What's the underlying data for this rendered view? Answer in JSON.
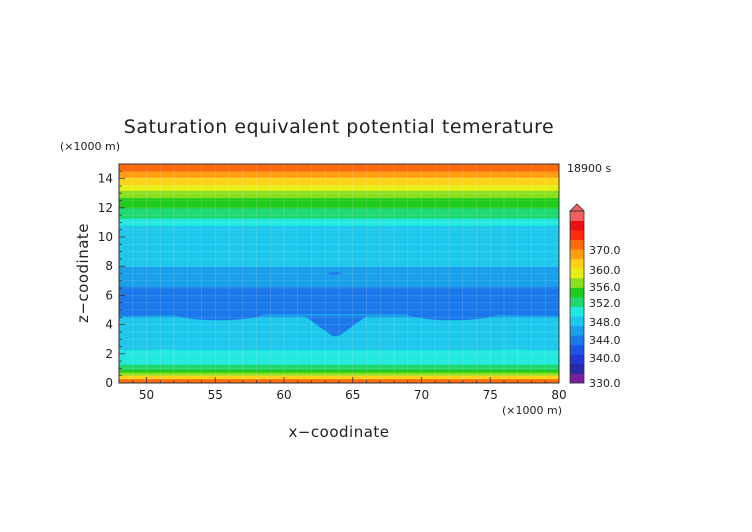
{
  "chart_data": {
    "type": "heatmap",
    "title": "Saturation equivalent potential temerature",
    "xlabel": "x−coodinate",
    "ylabel": "z−coodinate",
    "x_unit": "(×1000 m)",
    "y_unit": "(×1000 m)",
    "time_label": "18900 s",
    "xlim": [
      48,
      80
    ],
    "ylim": [
      0,
      15
    ],
    "x_ticks": [
      50,
      55,
      60,
      65,
      70,
      75,
      80
    ],
    "y_ticks": [
      0,
      2,
      4,
      6,
      8,
      10,
      12,
      14
    ],
    "grid": true,
    "colorbar": {
      "range": [
        330.0,
        370.0
      ],
      "labels": [
        "330.0",
        "340.0",
        "344.0",
        "348.0",
        "352.0",
        "356.0",
        "360.0",
        "370.0"
      ],
      "colors": [
        "#7a1fa0",
        "#2a2aa8",
        "#2238d6",
        "#1f55e6",
        "#1b78ea",
        "#1aa0ea",
        "#1ec8ec",
        "#23e8e0",
        "#20d870",
        "#22cc1c",
        "#8ae020",
        "#e6ee18",
        "#ffd21a",
        "#ff9e10",
        "#ff6a0a",
        "#ff2c10",
        "#e81010",
        "#f06060"
      ]
    },
    "bands": [
      {
        "z0": 0.0,
        "z1": 0.3,
        "value": 362
      },
      {
        "z0": 0.3,
        "z1": 0.55,
        "value": 358
      },
      {
        "z0": 0.55,
        "z1": 0.75,
        "value": 354
      },
      {
        "z0": 0.75,
        "z1": 0.95,
        "value": 351
      },
      {
        "z0": 0.95,
        "z1": 1.3,
        "value": 349
      },
      {
        "z0": 1.3,
        "z1": 2.3,
        "value": 346
      },
      {
        "z0": 2.3,
        "z1": 3.0,
        "value": 344
      },
      {
        "z0": 3.0,
        "z1": 4.5,
        "value": 345
      },
      {
        "z0": 4.5,
        "z1": 5.5,
        "value": 342
      },
      {
        "z0": 5.5,
        "z1": 6.6,
        "value": 341
      },
      {
        "z0": 6.6,
        "z1": 8.0,
        "value": 343
      },
      {
        "z0": 8.0,
        "z1": 10.8,
        "value": 345
      },
      {
        "z0": 10.8,
        "z1": 11.3,
        "value": 347
      },
      {
        "z0": 11.3,
        "z1": 12.0,
        "value": 349
      },
      {
        "z0": 12.0,
        "z1": 12.7,
        "value": 351
      },
      {
        "z0": 12.7,
        "z1": 13.2,
        "value": 353
      },
      {
        "z0": 13.2,
        "z1": 13.6,
        "value": 355
      },
      {
        "z0": 13.6,
        "z1": 14.1,
        "value": 357
      },
      {
        "z0": 14.1,
        "z1": 14.5,
        "value": 359
      },
      {
        "z0": 14.5,
        "z1": 15.0,
        "value": 362
      }
    ],
    "features": [
      {
        "name": "wide-low-band",
        "x0": 48,
        "x1": 80,
        "z0": 4.6,
        "z1": 6.6,
        "value": 341
      },
      {
        "name": "left-lobe",
        "x0": 52,
        "x1": 58.5,
        "z0": 4.3,
        "z1": 5.2,
        "value": 341
      },
      {
        "name": "right-lobe",
        "x0": 69,
        "x1": 75.5,
        "z0": 4.3,
        "z1": 5.2,
        "value": 341
      },
      {
        "name": "center-notch",
        "x0": 62.5,
        "x1": 65,
        "z0": 3.2,
        "z1": 4.6,
        "value": 341
      },
      {
        "name": "left-green-patch",
        "x0": 49.5,
        "x1": 53,
        "z0": 1.7,
        "z1": 2.3,
        "value": 347
      },
      {
        "name": "right-green-patch",
        "x0": 74.5,
        "x1": 79,
        "z0": 1.7,
        "z1": 2.3,
        "value": 347
      },
      {
        "name": "center-blip",
        "x0": 63.2,
        "x1": 64.2,
        "z0": 7.4,
        "z1": 7.6,
        "value": 341
      }
    ]
  }
}
